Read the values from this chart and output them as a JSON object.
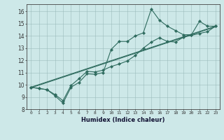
{
  "title": "",
  "xlabel": "Humidex (Indice chaleur)",
  "bg_color": "#cde8e8",
  "line_color": "#2e6b5e",
  "xlim": [
    -0.5,
    23.5
  ],
  "ylim": [
    8,
    16.6
  ],
  "xticks": [
    0,
    1,
    2,
    3,
    4,
    5,
    6,
    7,
    8,
    9,
    10,
    11,
    12,
    13,
    14,
    15,
    16,
    17,
    18,
    19,
    20,
    21,
    22,
    23
  ],
  "yticks": [
    8,
    9,
    10,
    11,
    12,
    13,
    14,
    15,
    16
  ],
  "series1_x": [
    0,
    1,
    2,
    3,
    4,
    5,
    6,
    7,
    8,
    9,
    10,
    11,
    12,
    13,
    14,
    15,
    16,
    17,
    18,
    19,
    20,
    21,
    22,
    23
  ],
  "series1_y": [
    9.8,
    9.7,
    9.6,
    9.1,
    8.5,
    9.8,
    10.2,
    10.9,
    10.85,
    11.0,
    12.9,
    13.55,
    13.55,
    14.0,
    14.25,
    16.2,
    15.3,
    14.8,
    14.45,
    14.1,
    14.1,
    15.2,
    14.8,
    14.8
  ],
  "series2_x": [
    0,
    1,
    2,
    3,
    4,
    5,
    6,
    7,
    8,
    9,
    10,
    11,
    12,
    13,
    14,
    15,
    16,
    17,
    18,
    19,
    20,
    21,
    22,
    23
  ],
  "series2_y": [
    9.8,
    9.7,
    9.6,
    9.2,
    8.7,
    9.95,
    10.5,
    11.1,
    11.05,
    11.2,
    11.5,
    11.7,
    11.95,
    12.4,
    13.0,
    13.5,
    13.85,
    13.55,
    13.5,
    13.9,
    14.05,
    14.2,
    14.35,
    14.8
  ],
  "trend_x": [
    0,
    23
  ],
  "trend_y": [
    9.8,
    14.8
  ],
  "trend2_x": [
    0,
    23
  ],
  "trend2_y": [
    9.8,
    14.8
  ]
}
